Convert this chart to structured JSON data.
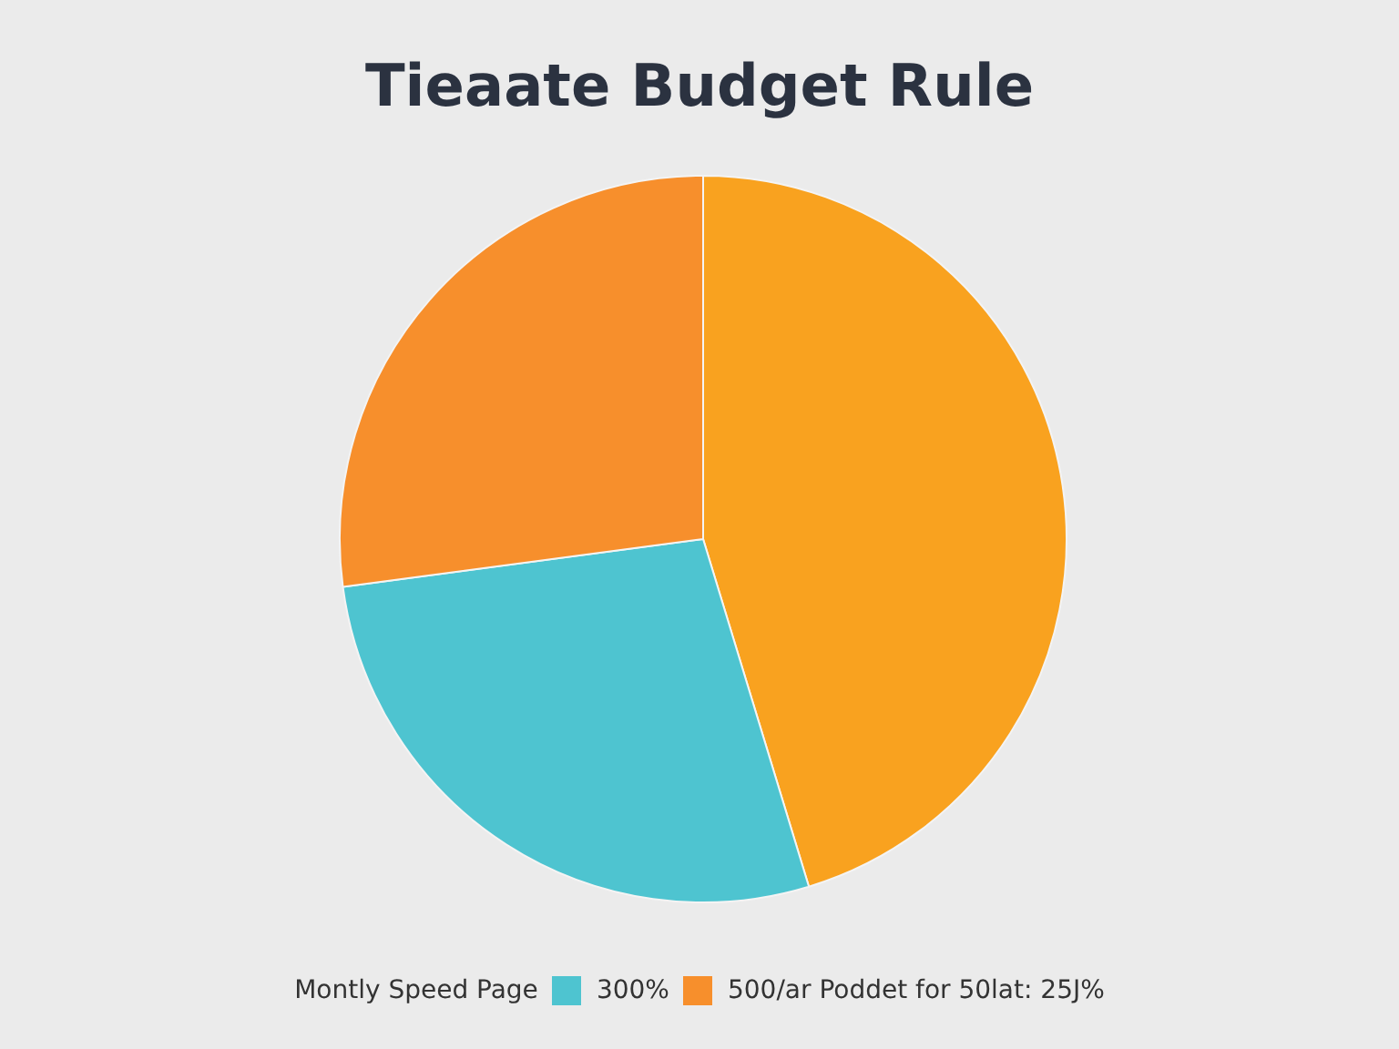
{
  "chart_data": {
    "type": "pie",
    "title": "Tieaate Budget Rule",
    "legend_title": "Montly Speed Page",
    "categories": [
      null,
      "300%",
      "500/ar Poddet for 50lat: 25J%"
    ],
    "values": [
      45.3,
      27.6,
      27.1
    ],
    "colors": [
      "#f9a21f",
      "#4ec4d0",
      "#f78f2c"
    ],
    "legend": "bottom"
  }
}
